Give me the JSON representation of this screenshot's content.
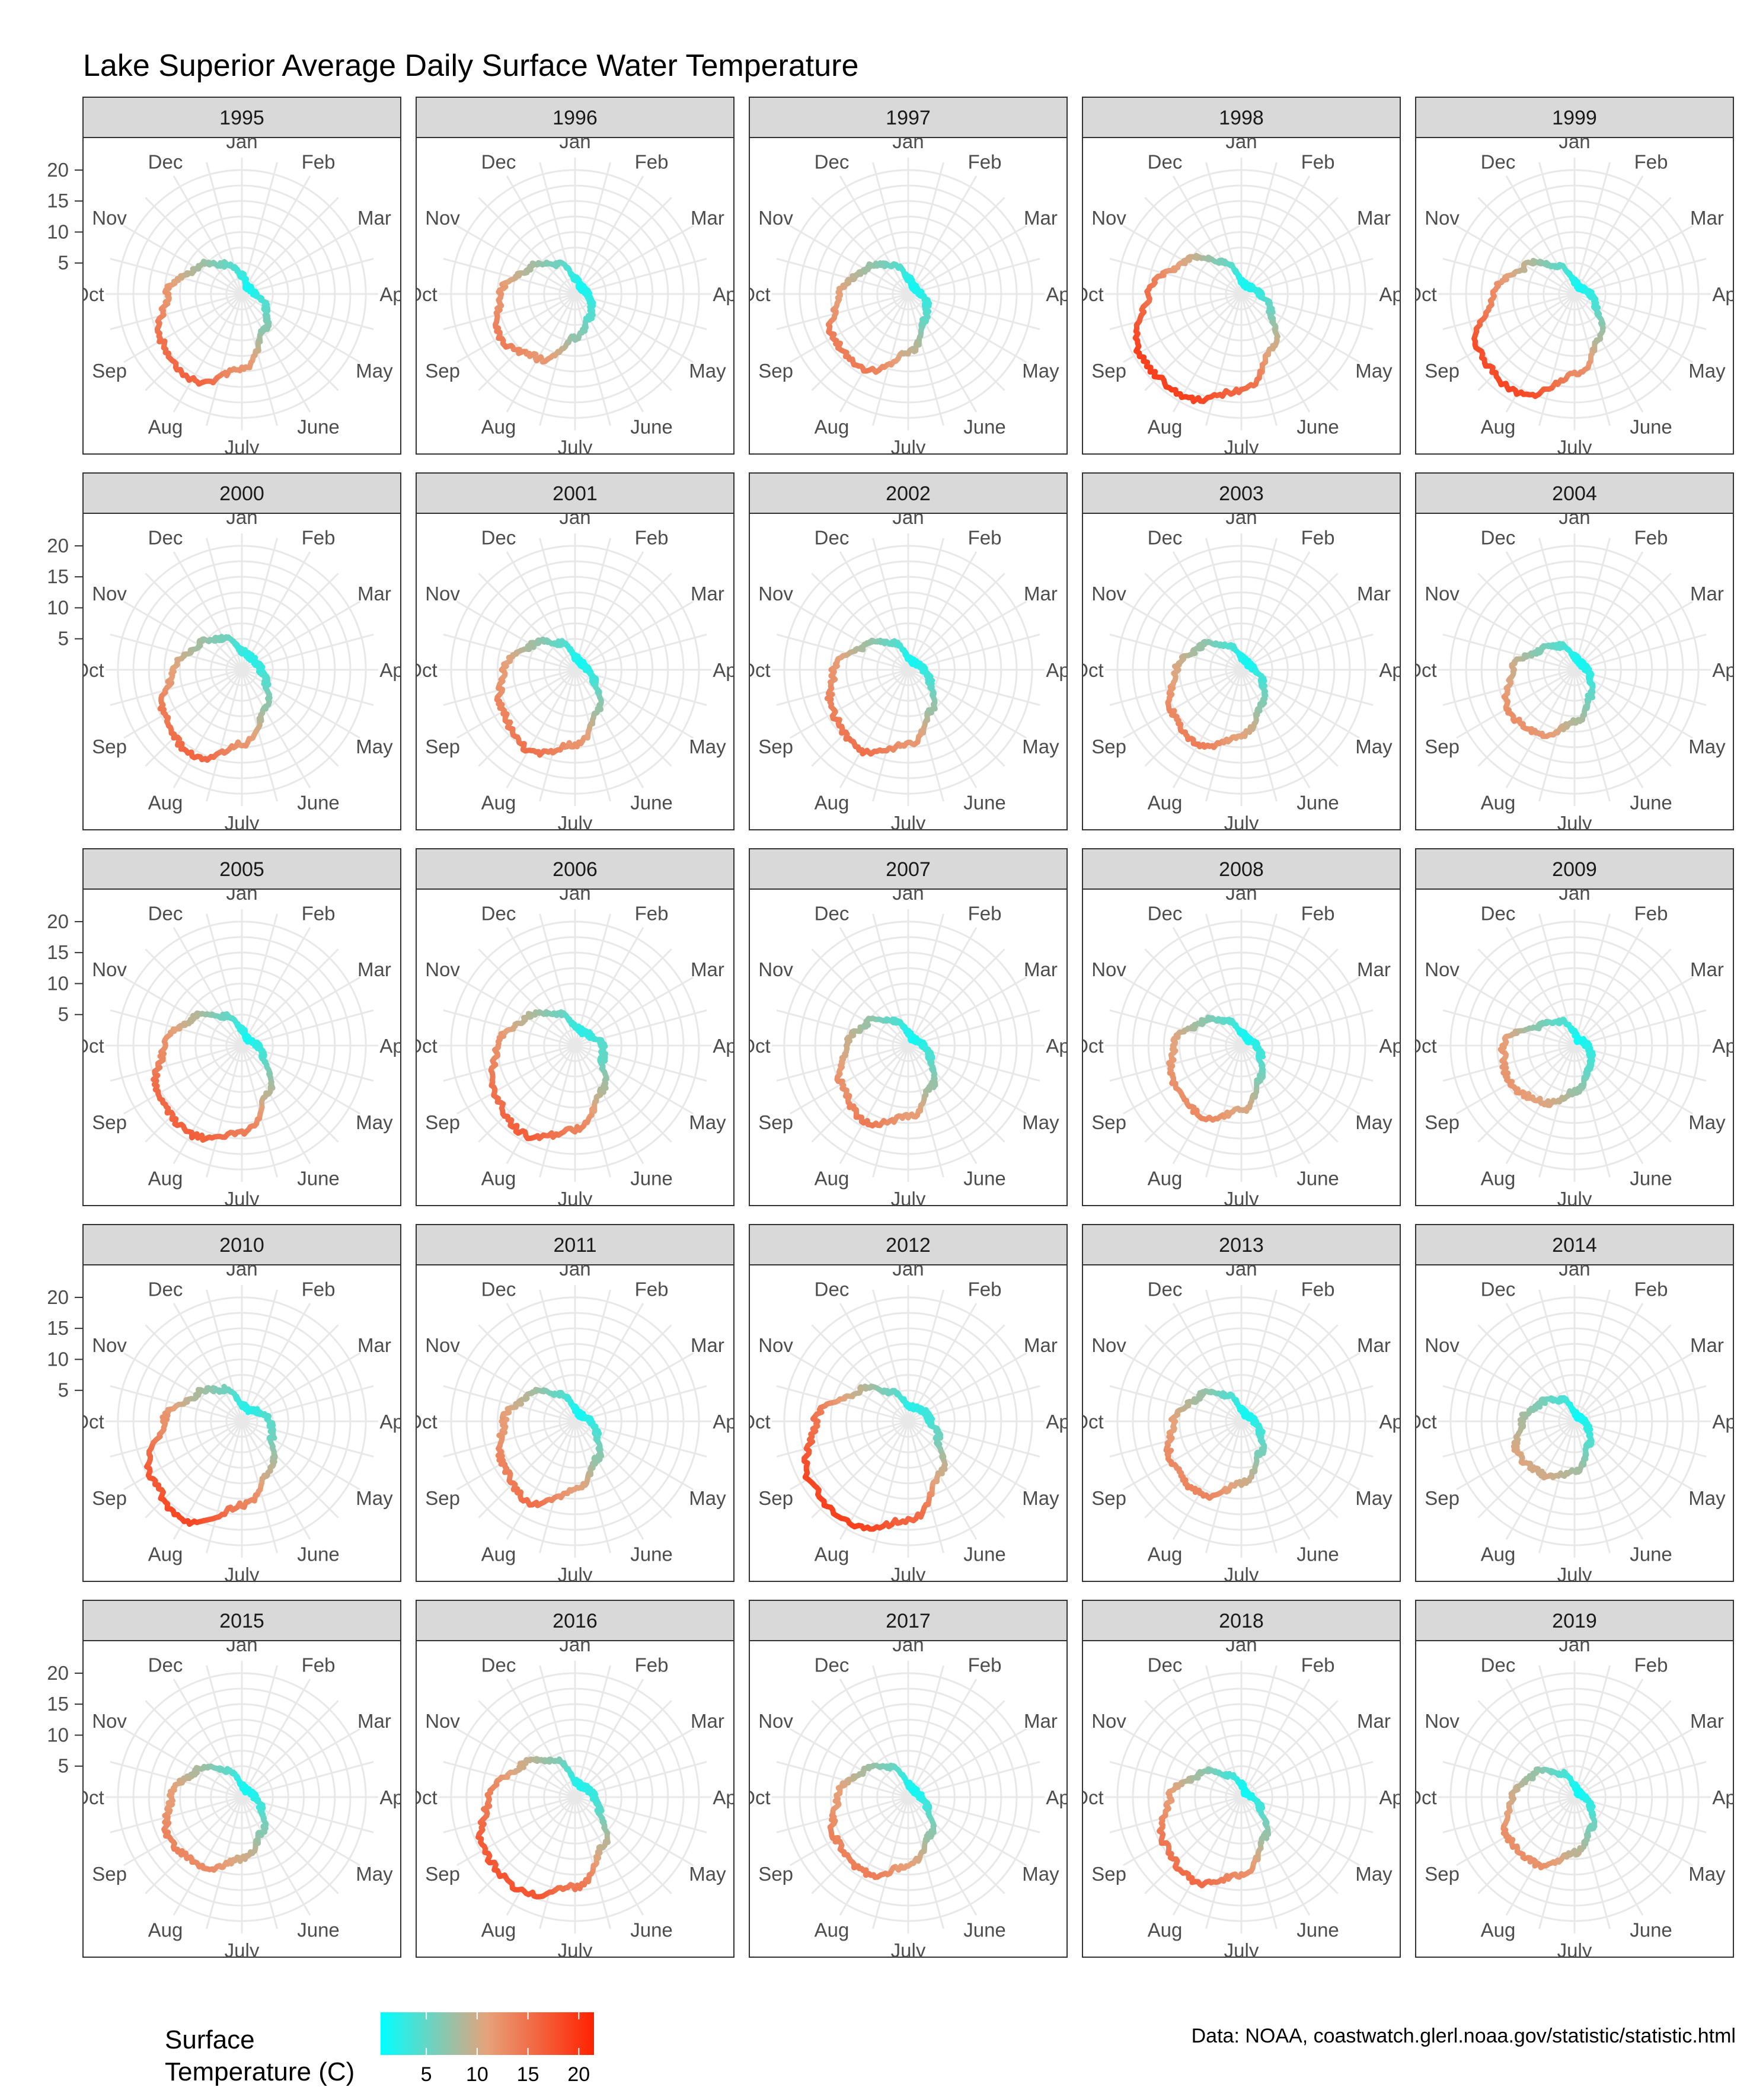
{
  "chart_data": {
    "type": "polar-line",
    "title": "Lake Superior Average Daily Surface Water Temperature",
    "caption": "Data: NOAA, coastwatch.glerl.noaa.gov/statistic/statistic.html",
    "months": [
      "Jan",
      "Feb",
      "Mar",
      "Apr",
      "May",
      "June",
      "July",
      "Aug",
      "Sep",
      "Oct",
      "Nov",
      "Dec"
    ],
    "radial_ticks": [
      5,
      10,
      15,
      20
    ],
    "radial_range": [
      0,
      22
    ],
    "grid": true,
    "legend": {
      "title_lines": [
        "Surface",
        "Temperature (C)"
      ],
      "ticks": [
        5,
        10,
        15,
        20
      ],
      "range": [
        0.5,
        21.5
      ],
      "low_color": "#00FFFF",
      "mid_color": "#E6A27A",
      "high_color": "#FF2200",
      "placement": "bottom-left"
    },
    "colors": {
      "strip_fill": "#D9D9D9",
      "panel_border": "#333333",
      "grid": "#E8E8E8"
    },
    "unit": "monthly mean surface temperature (C), approximated",
    "panels": [
      {
        "year": "1995",
        "values": [
          3.0,
          1.5,
          1.5,
          2.0,
          4.5,
          7.0,
          12.0,
          16.0,
          15.0,
          12.0,
          8.5,
          5.5
        ]
      },
      {
        "year": "1996",
        "values": [
          2.5,
          1.5,
          1.5,
          2.0,
          3.0,
          4.5,
          7.0,
          12.0,
          14.0,
          12.0,
          8.5,
          5.5
        ]
      },
      {
        "year": "1997",
        "values": [
          2.5,
          1.5,
          1.5,
          2.0,
          3.5,
          5.0,
          9.5,
          14.0,
          14.0,
          11.0,
          8.0,
          5.5
        ]
      },
      {
        "year": "1998",
        "values": [
          2.0,
          1.5,
          1.8,
          3.0,
          5.5,
          10.0,
          15.5,
          19.0,
          19.0,
          15.0,
          10.5,
          6.0
        ]
      },
      {
        "year": "1999",
        "values": [
          2.0,
          1.3,
          1.5,
          2.5,
          4.0,
          8.0,
          13.0,
          18.5,
          18.0,
          13.0,
          9.0,
          5.0
        ]
      },
      {
        "year": "2000",
        "values": [
          3.0,
          2.5,
          2.5,
          3.0,
          4.5,
          7.5,
          12.0,
          16.0,
          14.5,
          11.0,
          8.0,
          6.0
        ]
      },
      {
        "year": "2001",
        "values": [
          2.0,
          1.5,
          1.5,
          2.0,
          3.5,
          7.5,
          12.0,
          15.0,
          13.5,
          11.5,
          8.0,
          5.0
        ]
      },
      {
        "year": "2002",
        "values": [
          2.0,
          1.5,
          1.8,
          2.5,
          4.0,
          7.5,
          12.0,
          15.0,
          14.0,
          12.0,
          8.0,
          5.0
        ]
      },
      {
        "year": "2003",
        "values": [
          2.0,
          1.5,
          1.5,
          2.0,
          4.0,
          6.5,
          10.5,
          14.0,
          13.0,
          10.5,
          7.5,
          4.5
        ]
      },
      {
        "year": "2004",
        "values": [
          2.0,
          1.5,
          1.5,
          2.0,
          3.0,
          5.0,
          8.5,
          12.0,
          12.5,
          10.0,
          6.5,
          4.5
        ]
      },
      {
        "year": "2005",
        "values": [
          2.5,
          1.5,
          1.5,
          2.5,
          4.0,
          8.5,
          14.0,
          16.5,
          15.5,
          12.5,
          9.0,
          5.5
        ]
      },
      {
        "year": "2006",
        "values": [
          3.0,
          2.5,
          3.0,
          4.5,
          5.0,
          8.5,
          13.5,
          16.5,
          15.0,
          12.5,
          9.0,
          6.0
        ]
      },
      {
        "year": "2007",
        "values": [
          2.0,
          1.3,
          1.5,
          2.5,
          4.0,
          7.5,
          11.5,
          14.0,
          12.5,
          10.0,
          7.5,
          4.5
        ]
      },
      {
        "year": "2008",
        "values": [
          2.0,
          1.5,
          1.5,
          2.5,
          3.5,
          6.0,
          10.5,
          13.0,
          12.5,
          11.0,
          7.5,
          4.5
        ]
      },
      {
        "year": "2009",
        "values": [
          2.0,
          1.0,
          1.5,
          2.0,
          3.0,
          4.5,
          7.5,
          10.5,
          12.0,
          11.5,
          6.5,
          4.5
        ]
      },
      {
        "year": "2010",
        "values": [
          2.5,
          2.0,
          3.0,
          4.5,
          5.5,
          9.0,
          13.5,
          18.5,
          17.0,
          12.5,
          8.5,
          6.0
        ]
      },
      {
        "year": "2011",
        "values": [
          2.0,
          1.3,
          1.5,
          2.5,
          4.0,
          7.0,
          11.0,
          15.0,
          13.5,
          11.5,
          8.5,
          5.0
        ]
      },
      {
        "year": "2012",
        "values": [
          2.5,
          2.5,
          3.0,
          3.5,
          5.5,
          10.0,
          16.0,
          19.0,
          18.5,
          15.0,
          9.5,
          5.5
        ]
      },
      {
        "year": "2013",
        "values": [
          1.8,
          1.3,
          1.5,
          2.0,
          3.5,
          6.0,
          10.0,
          13.5,
          13.0,
          11.0,
          8.0,
          5.0
        ]
      },
      {
        "year": "2014",
        "values": [
          1.3,
          1.0,
          1.0,
          1.5,
          2.5,
          4.5,
          8.0,
          10.0,
          10.5,
          8.5,
          6.0,
          4.0
        ]
      },
      {
        "year": "2015",
        "values": [
          1.8,
          1.3,
          1.5,
          2.0,
          3.5,
          6.5,
          10.0,
          13.0,
          13.5,
          11.5,
          8.5,
          5.0
        ]
      },
      {
        "year": "2016",
        "values": [
          2.5,
          2.0,
          2.5,
          3.0,
          4.5,
          9.0,
          14.5,
          17.5,
          17.0,
          14.0,
          10.0,
          7.0
        ]
      },
      {
        "year": "2017",
        "values": [
          2.0,
          1.5,
          1.5,
          2.0,
          3.5,
          7.0,
          11.0,
          14.0,
          13.5,
          11.5,
          8.5,
          5.5
        ]
      },
      {
        "year": "2018",
        "values": [
          2.0,
          1.0,
          1.0,
          1.5,
          3.5,
          7.5,
          12.5,
          15.5,
          14.5,
          11.5,
          7.5,
          4.0
        ]
      },
      {
        "year": "2019",
        "values": [
          1.8,
          1.0,
          1.0,
          1.5,
          3.0,
          5.5,
          9.0,
          12.5,
          12.5,
          10.0,
          7.5,
          4.5
        ]
      }
    ]
  }
}
